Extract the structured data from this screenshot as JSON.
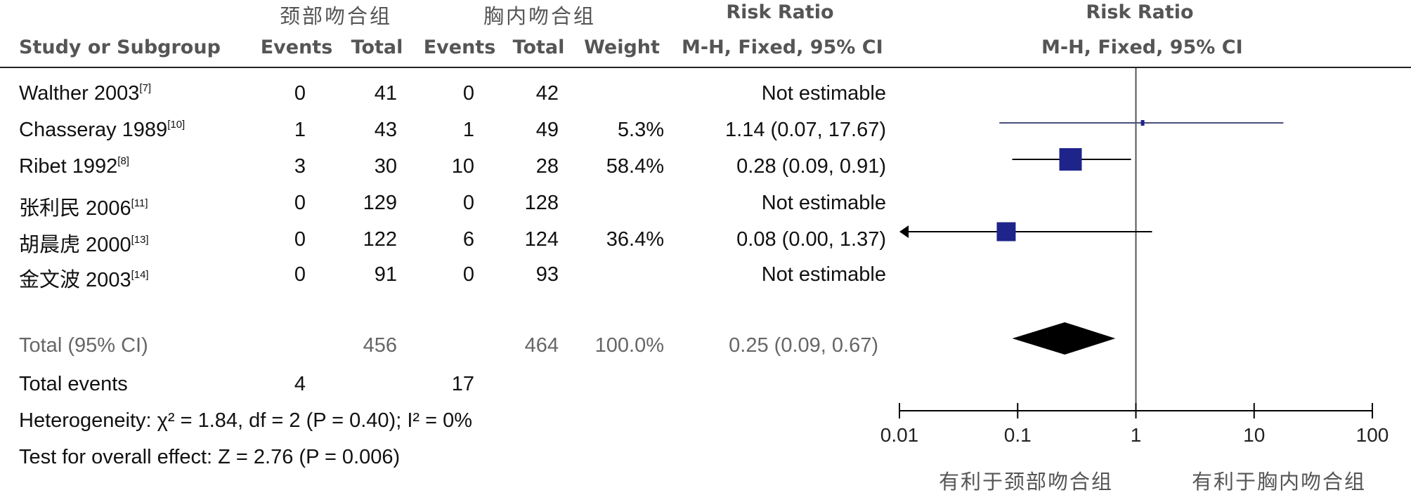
{
  "header": {
    "group1": "颈部吻合组",
    "group2": "胸内吻合组",
    "rr_title_table": "Risk Ratio",
    "rr_title_plot": "Risk Ratio",
    "col_study": "Study or Subgroup",
    "col_events1": "Events",
    "col_total1": "Total",
    "col_events2": "Events",
    "col_total2": "Total",
    "col_weight": "Weight",
    "col_mh_table": "M-H, Fixed, 95% CI",
    "col_mh_plot": "M-H, Fixed, 95% CI"
  },
  "rows": [
    {
      "study": "Walther 2003",
      "ref": "[7]",
      "e1": "0",
      "t1": "41",
      "e2": "0",
      "t2": "42",
      "weight": "",
      "ci": "Not estimable"
    },
    {
      "study": "Chasseray 1989",
      "ref": "[10]",
      "e1": "1",
      "t1": "43",
      "e2": "1",
      "t2": "49",
      "weight": "5.3%",
      "ci": "1.14 (0.07, 17.67)"
    },
    {
      "study": "Ribet 1992",
      "ref": "[8]",
      "e1": "3",
      "t1": "30",
      "e2": "10",
      "t2": "28",
      "weight": "58.4%",
      "ci": "0.28 (0.09, 0.91)"
    },
    {
      "study": "张利民 2006",
      "ref": "[11]",
      "e1": "0",
      "t1": "129",
      "e2": "0",
      "t2": "128",
      "weight": "",
      "ci": "Not estimable"
    },
    {
      "study": "胡晨虎 2000",
      "ref": "[13]",
      "e1": "0",
      "t1": "122",
      "e2": "6",
      "t2": "124",
      "weight": "36.4%",
      "ci": "0.08 (0.00, 1.37)"
    },
    {
      "study": "金文波 2003",
      "ref": "[14]",
      "e1": "0",
      "t1": "91",
      "e2": "0",
      "t2": "93",
      "weight": "",
      "ci": "Not estimable"
    }
  ],
  "total": {
    "label": "Total (95% CI)",
    "t1": "456",
    "t2": "464",
    "weight": "100.0%",
    "ci": "0.25 (0.09, 0.67)"
  },
  "total_events": {
    "label": "Total events",
    "e1": "4",
    "e2": "17"
  },
  "heterogeneity": "Heterogeneity: χ² = 1.84, df = 2 (P = 0.40); I² = 0%",
  "overall_effect": "Test for overall effect: Z = 2.76 (P = 0.006)",
  "chart_data": {
    "type": "scatter",
    "subtype": "forest-plot",
    "title": "Risk Ratio",
    "xlabel": "M-H, Fixed, 95% CI",
    "x_scale": "log",
    "xlim": [
      0.01,
      100
    ],
    "ticks": [
      "0.01",
      "0.1",
      "1",
      "10",
      "100"
    ],
    "reference_line": 1,
    "favours_left": "有利于颈部吻合组",
    "favours_right": "有利于胸内吻合组",
    "studies": [
      {
        "study": "Walther 2003",
        "rr": null,
        "lo": null,
        "hi": null,
        "weight": null
      },
      {
        "study": "Chasseray 1989",
        "rr": 1.14,
        "lo": 0.07,
        "hi": 17.67,
        "weight": 5.3
      },
      {
        "study": "Ribet 1992",
        "rr": 0.28,
        "lo": 0.09,
        "hi": 0.91,
        "weight": 58.4
      },
      {
        "study": "张利民 2006",
        "rr": null,
        "lo": null,
        "hi": null,
        "weight": null
      },
      {
        "study": "胡晨虎 2000",
        "rr": 0.08,
        "lo": 0.0,
        "hi": 1.37,
        "weight": 36.4
      },
      {
        "study": "金文波 2003",
        "rr": null,
        "lo": null,
        "hi": null,
        "weight": null
      }
    ],
    "pooled": {
      "rr": 0.25,
      "lo": 0.09,
      "hi": 0.67
    },
    "colors": {
      "marker": "#1f248a",
      "diamond": "#000000",
      "line": "#000000",
      "ref": "#555555",
      "ci_faint": "#4a4f7a"
    }
  }
}
